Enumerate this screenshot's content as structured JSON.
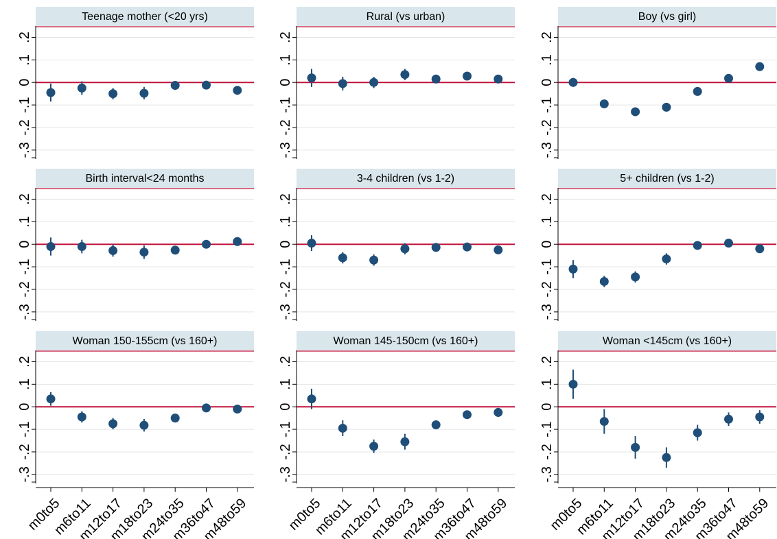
{
  "chart_data": {
    "type": "scatter",
    "layout": "3x3 facet grid",
    "x_categories": [
      "m0to5",
      "m6to11",
      "m12to17",
      "m18to23",
      "m24to35",
      "m36to47",
      "m48to59"
    ],
    "y_ticks": [
      {
        "value": 0.2,
        "label": ".2"
      },
      {
        "value": 0.1,
        "label": ".1"
      },
      {
        "value": 0.0,
        "label": "0"
      },
      {
        "value": -0.1,
        "label": "-.1"
      },
      {
        "value": -0.2,
        "label": "-.2"
      },
      {
        "value": -0.3,
        "label": "-.3"
      }
    ],
    "ylim": [
      -0.34,
      0.25
    ],
    "reference_line": 0,
    "colors": {
      "marker": "#1f4e79",
      "reference": "#c0143c",
      "header": "#d9e6ec",
      "grid": "#e4e4e4"
    },
    "panels": [
      {
        "title": "Teenage mother (<20 yrs)",
        "estimates": [
          -0.045,
          -0.025,
          -0.05,
          -0.048,
          -0.013,
          -0.012,
          -0.035
        ],
        "ci_low": [
          -0.085,
          -0.055,
          -0.075,
          -0.075,
          -0.025,
          -0.022,
          -0.045
        ],
        "ci_high": [
          -0.005,
          0.005,
          -0.025,
          -0.02,
          -0.001,
          -0.002,
          -0.025
        ]
      },
      {
        "title": "Rural (vs urban)",
        "estimates": [
          0.02,
          -0.005,
          0.0,
          0.035,
          0.015,
          0.028,
          0.015
        ],
        "ci_low": [
          -0.02,
          -0.035,
          -0.025,
          0.01,
          0.0,
          0.016,
          0.005
        ],
        "ci_high": [
          0.06,
          0.025,
          0.025,
          0.06,
          0.03,
          0.04,
          0.025
        ]
      },
      {
        "title": "Boy (vs girl)",
        "estimates": [
          0.0,
          -0.095,
          -0.13,
          -0.11,
          -0.04,
          0.018,
          0.07
        ],
        "ci_low": [
          -0.02,
          -0.105,
          -0.14,
          -0.12,
          -0.05,
          0.008,
          0.06
        ],
        "ci_high": [
          0.02,
          -0.085,
          -0.12,
          -0.1,
          -0.03,
          0.028,
          0.08
        ]
      },
      {
        "title": "Birth interval<24 months",
        "estimates": [
          -0.01,
          -0.01,
          -0.028,
          -0.035,
          -0.026,
          0.0,
          0.012
        ],
        "ci_low": [
          -0.05,
          -0.04,
          -0.055,
          -0.065,
          -0.04,
          -0.01,
          0.002
        ],
        "ci_high": [
          0.03,
          0.02,
          -0.001,
          -0.005,
          -0.012,
          0.01,
          0.022
        ]
      },
      {
        "title": "3-4 children (vs 1-2)",
        "estimates": [
          0.005,
          -0.06,
          -0.07,
          -0.02,
          -0.014,
          -0.012,
          -0.025
        ],
        "ci_low": [
          -0.03,
          -0.085,
          -0.095,
          -0.045,
          -0.027,
          -0.024,
          -0.04
        ],
        "ci_high": [
          0.04,
          -0.035,
          -0.045,
          0.005,
          -0.001,
          0.0,
          -0.01
        ]
      },
      {
        "title": "5+ children (vs 1-2)",
        "estimates": [
          -0.11,
          -0.165,
          -0.145,
          -0.065,
          -0.005,
          0.005,
          -0.02
        ],
        "ci_low": [
          -0.15,
          -0.19,
          -0.17,
          -0.09,
          -0.02,
          -0.01,
          -0.035
        ],
        "ci_high": [
          -0.07,
          -0.14,
          -0.12,
          -0.04,
          0.01,
          0.02,
          -0.005
        ]
      },
      {
        "title": "Woman 150-155cm (vs 160+)",
        "estimates": [
          0.035,
          -0.045,
          -0.075,
          -0.082,
          -0.05,
          -0.005,
          -0.01
        ],
        "ci_low": [
          0.005,
          -0.07,
          -0.1,
          -0.11,
          -0.065,
          -0.015,
          -0.025
        ],
        "ci_high": [
          0.065,
          -0.02,
          -0.05,
          -0.054,
          -0.035,
          0.005,
          0.005
        ]
      },
      {
        "title": "Woman 145-150cm (vs 160+)",
        "estimates": [
          0.035,
          -0.095,
          -0.175,
          -0.155,
          -0.08,
          -0.035,
          -0.025
        ],
        "ci_low": [
          -0.01,
          -0.13,
          -0.205,
          -0.19,
          -0.1,
          -0.05,
          -0.045
        ],
        "ci_high": [
          0.08,
          -0.06,
          -0.145,
          -0.12,
          -0.06,
          -0.02,
          -0.005
        ]
      },
      {
        "title": "Woman <145cm (vs 160+)",
        "estimates": [
          0.1,
          -0.065,
          -0.18,
          -0.225,
          -0.115,
          -0.055,
          -0.045
        ],
        "ci_low": [
          0.035,
          -0.12,
          -0.23,
          -0.27,
          -0.15,
          -0.085,
          -0.075
        ],
        "ci_high": [
          0.165,
          -0.01,
          -0.13,
          -0.18,
          -0.08,
          -0.025,
          -0.015
        ]
      }
    ]
  }
}
